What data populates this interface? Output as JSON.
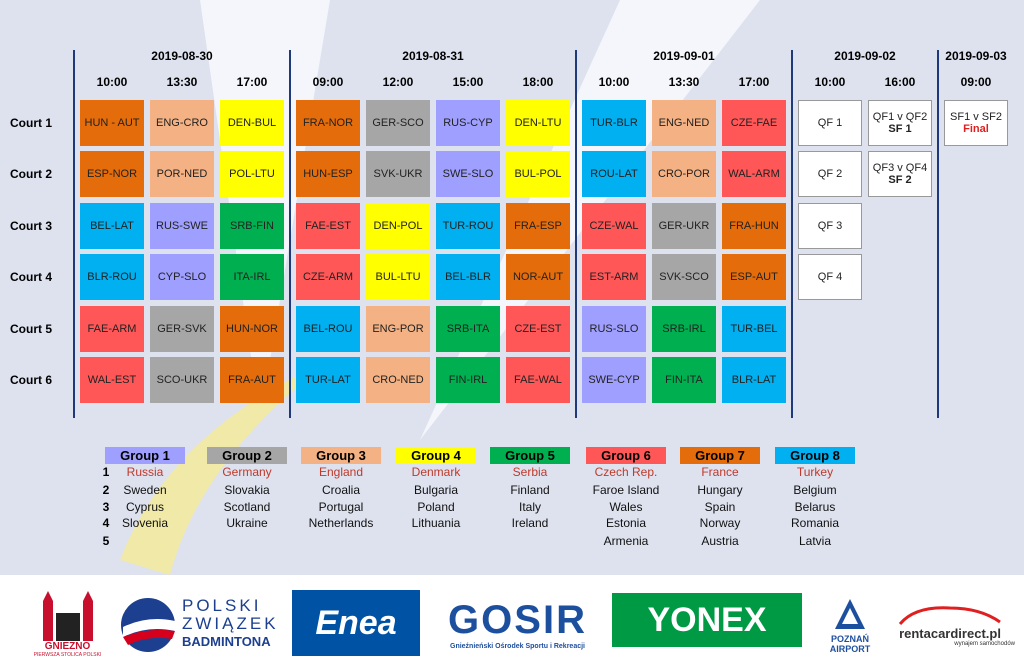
{
  "schedule": {
    "courts": [
      "Court 1",
      "Court 2",
      "Court 3",
      "Court 4",
      "Court 5",
      "Court 6"
    ],
    "days": [
      {
        "date": "2019-08-30",
        "slots": [
          {
            "time": "10:00",
            "matches": [
              {
                "text": "HUN - AUT",
                "color": "#e46c0a"
              },
              {
                "text": "ESP-NOR",
                "color": "#e46c0a"
              },
              {
                "text": "BEL-LAT",
                "color": "#00b0f0"
              },
              {
                "text": "BLR-ROU",
                "color": "#00b0f0"
              },
              {
                "text": "FAE-ARM",
                "color": "#ff5757"
              },
              {
                "text": "WAL-EST",
                "color": "#ff5757"
              }
            ]
          },
          {
            "time": "13:30",
            "matches": [
              {
                "text": "ENG-CRO",
                "color": "#f4b183"
              },
              {
                "text": "POR-NED",
                "color": "#f4b183"
              },
              {
                "text": "RUS-SWE",
                "color": "#9f9fff"
              },
              {
                "text": "CYP-SLO",
                "color": "#9f9fff"
              },
              {
                "text": "GER-SVK",
                "color": "#a6a6a6"
              },
              {
                "text": "SCO-UKR",
                "color": "#a6a6a6"
              }
            ]
          },
          {
            "time": "17:00",
            "matches": [
              {
                "text": "DEN-BUL",
                "color": "#ffff00"
              },
              {
                "text": "POL-LTU",
                "color": "#ffff00"
              },
              {
                "text": "SRB-FIN",
                "color": "#00b050"
              },
              {
                "text": "ITA-IRL",
                "color": "#00b050"
              },
              {
                "text": "HUN-NOR",
                "color": "#e46c0a"
              },
              {
                "text": "FRA-AUT",
                "color": "#e46c0a"
              }
            ]
          }
        ]
      },
      {
        "date": "2019-08-31",
        "slots": [
          {
            "time": "09:00",
            "matches": [
              {
                "text": "FRA-NOR",
                "color": "#e46c0a"
              },
              {
                "text": "HUN-ESP",
                "color": "#e46c0a"
              },
              {
                "text": "FAE-EST",
                "color": "#ff5757"
              },
              {
                "text": "CZE-ARM",
                "color": "#ff5757"
              },
              {
                "text": "BEL-ROU",
                "color": "#00b0f0"
              },
              {
                "text": "TUR-LAT",
                "color": "#00b0f0"
              }
            ]
          },
          {
            "time": "12:00",
            "matches": [
              {
                "text": "GER-SCO",
                "color": "#a6a6a6"
              },
              {
                "text": "SVK-UKR",
                "color": "#a6a6a6"
              },
              {
                "text": "DEN-POL",
                "color": "#ffff00"
              },
              {
                "text": "BUL-LTU",
                "color": "#ffff00"
              },
              {
                "text": "ENG-POR",
                "color": "#f4b183"
              },
              {
                "text": "CRO-NED",
                "color": "#f4b183"
              }
            ]
          },
          {
            "time": "15:00",
            "matches": [
              {
                "text": "RUS-CYP",
                "color": "#9f9fff"
              },
              {
                "text": "SWE-SLO",
                "color": "#9f9fff"
              },
              {
                "text": "TUR-ROU",
                "color": "#00b0f0"
              },
              {
                "text": "BEL-BLR",
                "color": "#00b0f0"
              },
              {
                "text": "SRB-ITA",
                "color": "#00b050"
              },
              {
                "text": "FIN-IRL",
                "color": "#00b050"
              }
            ]
          },
          {
            "time": "18:00",
            "matches": [
              {
                "text": "DEN-LTU",
                "color": "#ffff00"
              },
              {
                "text": "BUL-POL",
                "color": "#ffff00"
              },
              {
                "text": "FRA-ESP",
                "color": "#e46c0a"
              },
              {
                "text": "NOR-AUT",
                "color": "#e46c0a"
              },
              {
                "text": "CZE-EST",
                "color": "#ff5757"
              },
              {
                "text": "FAE-WAL",
                "color": "#ff5757"
              }
            ]
          }
        ]
      },
      {
        "date": "2019-09-01",
        "slots": [
          {
            "time": "10:00",
            "matches": [
              {
                "text": "TUR-BLR",
                "color": "#00b0f0"
              },
              {
                "text": "ROU-LAT",
                "color": "#00b0f0"
              },
              {
                "text": "CZE-WAL",
                "color": "#ff5757"
              },
              {
                "text": "EST-ARM",
                "color": "#ff5757"
              },
              {
                "text": "RUS-SLO",
                "color": "#9f9fff"
              },
              {
                "text": "SWE-CYP",
                "color": "#9f9fff"
              }
            ]
          },
          {
            "time": "13:30",
            "matches": [
              {
                "text": "ENG-NED",
                "color": "#f4b183"
              },
              {
                "text": "CRO-POR",
                "color": "#f4b183"
              },
              {
                "text": "GER-UKR",
                "color": "#a6a6a6"
              },
              {
                "text": "SVK-SCO",
                "color": "#a6a6a6"
              },
              {
                "text": "SRB-IRL",
                "color": "#00b050"
              },
              {
                "text": "FIN-ITA",
                "color": "#00b050"
              }
            ]
          },
          {
            "time": "17:00",
            "matches": [
              {
                "text": "CZE-FAE",
                "color": "#ff5757"
              },
              {
                "text": "WAL-ARM",
                "color": "#ff5757"
              },
              {
                "text": "FRA-HUN",
                "color": "#e46c0a"
              },
              {
                "text": "ESP-AUT",
                "color": "#e46c0a"
              },
              {
                "text": "TUR-BEL",
                "color": "#00b0f0"
              },
              {
                "text": "BLR-LAT",
                "color": "#00b0f0"
              }
            ]
          }
        ]
      },
      {
        "date": "2019-09-02",
        "slots": [
          {
            "time": "10:00",
            "matches": [
              {
                "text": "QF 1"
              },
              {
                "text": "QF 2"
              },
              {
                "text": "QF 3"
              },
              {
                "text": "QF 4"
              },
              null,
              null
            ]
          },
          {
            "time": "16:00",
            "matches": [
              {
                "text": "QF1 v QF2",
                "sub": "SF 1"
              },
              {
                "text": "QF3 v QF4",
                "sub": "SF 2"
              },
              null,
              null,
              null,
              null
            ]
          }
        ]
      },
      {
        "date": "2019-09-03",
        "slots": [
          {
            "time": "09:00",
            "matches": [
              {
                "text": "SF1 v SF2",
                "sub": "Final",
                "sub_color": "#e02020"
              },
              null,
              null,
              null,
              null,
              null
            ]
          }
        ]
      }
    ]
  },
  "groups": {
    "ranks": [
      "1",
      "2",
      "3",
      "4",
      "5"
    ],
    "list": [
      {
        "name": "Group 1",
        "color": "#9f9fff",
        "teams": [
          "Russia",
          "Sweden",
          "Cyprus",
          "Slovenia"
        ]
      },
      {
        "name": "Group 2",
        "color": "#a6a6a6",
        "teams": [
          "Germany",
          "Slovakia",
          "Scotland",
          "Ukraine"
        ]
      },
      {
        "name": "Group 3",
        "color": "#f4b183",
        "teams": [
          "England",
          "Croalia",
          "Portugal",
          "Netherlands"
        ]
      },
      {
        "name": "Group 4",
        "color": "#ffff00",
        "teams": [
          "Denmark",
          "Bulgaria",
          "Poland",
          "Lithuania"
        ]
      },
      {
        "name": "Group 5",
        "color": "#00b050",
        "teams": [
          "Serbia",
          "Finland",
          "Italy",
          "Ireland"
        ]
      },
      {
        "name": "Group 6",
        "color": "#ff5757",
        "teams": [
          "Czech Rep.",
          "Faroe Island",
          "Wales",
          "Estonia",
          "Armenia"
        ]
      },
      {
        "name": "Group 7",
        "color": "#e46c0a",
        "teams": [
          "France",
          "Hungary",
          "Spain",
          "Norway",
          "Austria"
        ]
      },
      {
        "name": "Group 8",
        "color": "#00b0f0",
        "teams": [
          "Turkey",
          "Belgium",
          "Belarus",
          "Romania",
          "Latvia"
        ]
      }
    ]
  },
  "sponsors": {
    "gniezno": "GNIEZNO",
    "gniezno_sub": "PIERWSZA STOLICA POLSKI",
    "pzbad_1": "POLSKI",
    "pzbad_2": "ZWIĄZEK",
    "pzbad_3": "BADMINTONA",
    "enea": "Enea",
    "gosir": "GOSIR",
    "gosir_sub": "Gnieźnieński Ośrodek Sportu i Rekreacji",
    "yonex": "YONEX",
    "poznan_1": "POZNAŃ",
    "poznan_2": "AIRPORT",
    "rent": "rentacardirect.pl",
    "rent_sub": "wynajem samochodów"
  }
}
